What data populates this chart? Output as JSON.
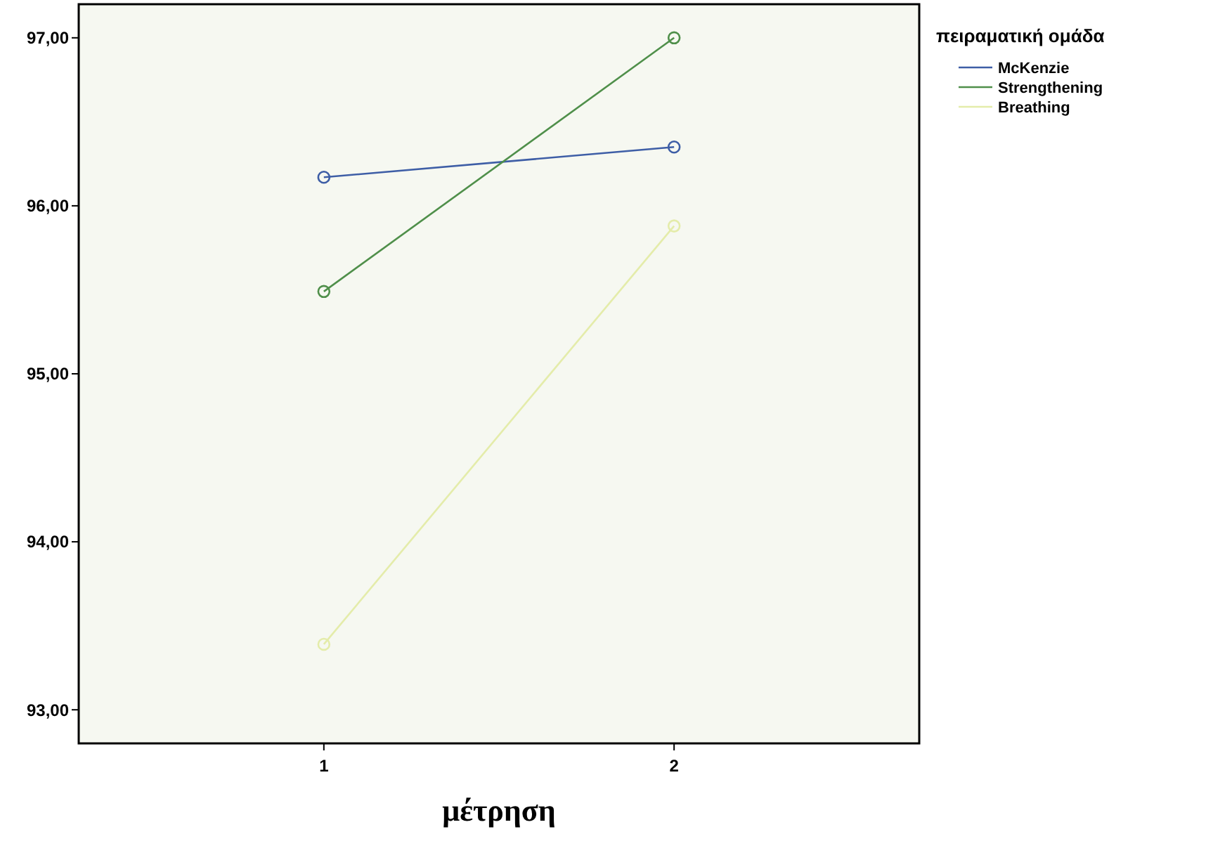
{
  "chart_data": {
    "type": "line",
    "xlabel": "μέτρηση",
    "legend_title": "πειραματική ομάδα",
    "categories": [
      "1",
      "2"
    ],
    "series": [
      {
        "name": "McKenzie",
        "color": "#3e5ea6",
        "values": [
          96.17,
          96.35
        ]
      },
      {
        "name": "Strengthening",
        "color": "#4f8f4a",
        "values": [
          95.49,
          97.0
        ]
      },
      {
        "name": "Breathing",
        "color": "#e4ecaa",
        "values": [
          93.39,
          95.88
        ]
      }
    ],
    "ylim": [
      92.8,
      97.2
    ],
    "yticks": [
      {
        "value": 93,
        "label": "93,00"
      },
      {
        "value": 94,
        "label": "94,00"
      },
      {
        "value": 95,
        "label": "95,00"
      },
      {
        "value": 96,
        "label": "96,00"
      },
      {
        "value": 97,
        "label": "97,00"
      }
    ],
    "marker": "circle",
    "legend": "right",
    "grid": false
  }
}
